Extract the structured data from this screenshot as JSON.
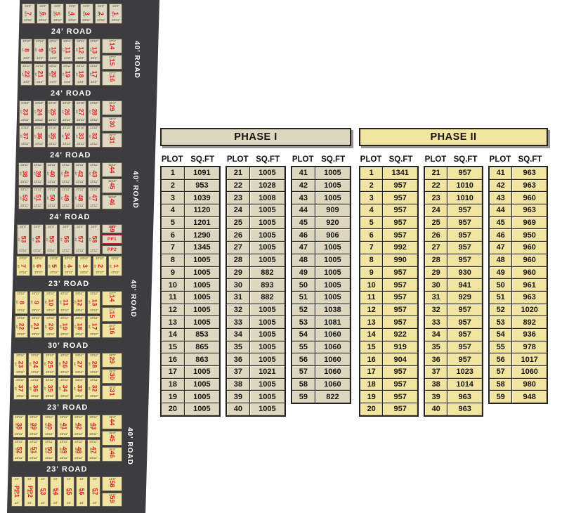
{
  "map": {
    "side_road_label": "40' ROAD",
    "colors": {
      "background": "#3d3c3e",
      "phase1_plot": "#ded8c2",
      "phase2_plot": "#f1e3a0",
      "plot_number": "#e32227",
      "road_text": "#ffffff"
    },
    "bands": [
      {
        "type": "plots",
        "phase": 1,
        "rows": [
          [
            "7",
            "6",
            "5",
            "4",
            "3",
            "2",
            "1"
          ]
        ],
        "right": [],
        "dim_top": "24'2\"",
        "dim_bottom": "23'11\"",
        "dim_side": "36'5\""
      },
      {
        "type": "road",
        "label": "24' ROAD"
      },
      {
        "type": "plots",
        "phase": 1,
        "rows": [
          [
            "8",
            "9",
            "10",
            "11",
            "12",
            "13"
          ],
          [
            "22",
            "21",
            "20",
            "19",
            "18",
            "17"
          ]
        ],
        "right": [
          "14",
          "15",
          "16"
        ],
        "dim_top": "23'11\"",
        "dim_bottom": "24'2\"",
        "dim_side": "42'",
        "dim_right": "27'1\""
      },
      {
        "type": "road",
        "label": "24' ROAD"
      },
      {
        "type": "plots",
        "phase": 1,
        "rows": [
          [
            "23",
            "24",
            "25",
            "26",
            "27",
            "28"
          ],
          [
            "37",
            "36",
            "35",
            "34",
            "33",
            "32"
          ]
        ],
        "right": [
          "29",
          "30",
          "31"
        ],
        "dim_top": "23'10\"",
        "dim_bottom": "23'11\"",
        "dim_side": "42'",
        "dim_right": "31'1\""
      },
      {
        "type": "road",
        "label": "24' ROAD"
      },
      {
        "type": "plots",
        "phase": 1,
        "rows": [
          [
            "38",
            "39",
            "40",
            "41",
            "42",
            "43"
          ],
          [
            "52",
            "51",
            "50",
            "49",
            "48",
            "47"
          ]
        ],
        "right": [
          "44",
          "45",
          "46"
        ],
        "dim_top": "23'11\"",
        "dim_bottom": "23'11\"",
        "dim_side": "42'",
        "dim_right": "32'10\""
      },
      {
        "type": "road",
        "label": "24' ROAD"
      },
      {
        "type": "plots",
        "phase": 1,
        "rows": [
          [
            "53",
            "54",
            "55",
            "56",
            "57",
            "58"
          ]
        ],
        "right": [
          "59",
          "PP1",
          "PP2"
        ],
        "dim_top": "24'3\"",
        "dim_bottom": "23'11\"",
        "dim_side": "44'",
        "dim_right": "33'10\""
      },
      {
        "type": "plots",
        "phase": 2,
        "rows": [
          [
            "7",
            "6",
            "5",
            "4",
            "3",
            "2",
            "1"
          ]
        ],
        "right": [],
        "dim_top": "23'11\"",
        "dim_bottom": "23'11\"",
        "dim_side": "40'"
      },
      {
        "type": "road",
        "label": "23' ROAD"
      },
      {
        "type": "plots",
        "phase": 2,
        "rows": [
          [
            "8",
            "9",
            "10",
            "11",
            "12",
            "13"
          ],
          [
            "22",
            "21",
            "20",
            "19",
            "18",
            "17"
          ]
        ],
        "right": [
          "14",
          "15",
          "16"
        ],
        "dim_top": "23'11\"",
        "dim_bottom": "23'11\"",
        "dim_side": "40'",
        "dim_right": "34'7\""
      },
      {
        "type": "road",
        "label": "30' ROAD"
      },
      {
        "type": "plots",
        "phase": 2,
        "rows": [
          [
            "23",
            "24",
            "25",
            "26",
            "27",
            "28"
          ],
          [
            "37",
            "36",
            "35",
            "34",
            "33",
            "32"
          ]
        ],
        "right": [
          "29",
          "30",
          "31"
        ],
        "dim_top": "23'11\"",
        "dim_bottom": "23'11\"",
        "dim_side": "40'",
        "dim_right": "35'3\""
      },
      {
        "type": "road",
        "label": "23' ROAD"
      },
      {
        "type": "plots",
        "phase": 2,
        "rows": [
          [
            "38",
            "39",
            "40",
            "41",
            "42",
            "43"
          ],
          [
            "52",
            "51",
            "50",
            "49",
            "48",
            "47"
          ]
        ],
        "right": [
          "44",
          "45",
          "46"
        ],
        "dim_top": "23'11\"",
        "dim_bottom": "23'11\"",
        "dim_side": "40'3\"",
        "dim_right": "36'4\""
      },
      {
        "type": "road",
        "label": "23' ROAD"
      },
      {
        "type": "plots",
        "phase": 2,
        "rows": [
          [
            "PP1",
            "PP2",
            "53",
            "54",
            "55",
            "56",
            "57"
          ]
        ],
        "right": [
          "58",
          "59"
        ],
        "dim_top": "24'",
        "dim_bottom": "24'",
        "dim_side": "36'6\"",
        "dim_right": "41'6\""
      }
    ]
  },
  "phase1": {
    "title": "PHASE I",
    "col_plot": "PLOT",
    "col_sqft": "SQ.FT",
    "groups": [
      [
        [
          1,
          1091
        ],
        [
          2,
          953
        ],
        [
          3,
          1039
        ],
        [
          4,
          1120
        ],
        [
          5,
          1201
        ],
        [
          6,
          1290
        ],
        [
          7,
          1345
        ],
        [
          8,
          1005
        ],
        [
          9,
          1005
        ],
        [
          10,
          1005
        ],
        [
          11,
          1005
        ],
        [
          12,
          1005
        ],
        [
          13,
          1005
        ],
        [
          14,
          853
        ],
        [
          15,
          865
        ],
        [
          16,
          863
        ],
        [
          17,
          1005
        ],
        [
          18,
          1005
        ],
        [
          19,
          1005
        ],
        [
          20,
          1005
        ]
      ],
      [
        [
          21,
          1005
        ],
        [
          22,
          1028
        ],
        [
          23,
          1008
        ],
        [
          24,
          1005
        ],
        [
          25,
          1005
        ],
        [
          26,
          1005
        ],
        [
          27,
          1005
        ],
        [
          28,
          1005
        ],
        [
          29,
          882
        ],
        [
          30,
          893
        ],
        [
          31,
          882
        ],
        [
          32,
          1005
        ],
        [
          33,
          1005
        ],
        [
          34,
          1005
        ],
        [
          35,
          1005
        ],
        [
          36,
          1005
        ],
        [
          37,
          1021
        ],
        [
          38,
          1005
        ],
        [
          39,
          1005
        ],
        [
          40,
          1005
        ]
      ],
      [
        [
          41,
          1005
        ],
        [
          42,
          1005
        ],
        [
          43,
          1005
        ],
        [
          44,
          909
        ],
        [
          45,
          920
        ],
        [
          46,
          906
        ],
        [
          47,
          1005
        ],
        [
          48,
          1005
        ],
        [
          49,
          1005
        ],
        [
          50,
          1005
        ],
        [
          51,
          1005
        ],
        [
          52,
          1038
        ],
        [
          53,
          1081
        ],
        [
          54,
          1060
        ],
        [
          55,
          1060
        ],
        [
          56,
          1060
        ],
        [
          57,
          1060
        ],
        [
          58,
          1060
        ],
        [
          59,
          822
        ]
      ]
    ]
  },
  "phase2": {
    "title": "PHASE II",
    "col_plot": "PLOT",
    "col_sqft": "SQ.FT",
    "groups": [
      [
        [
          1,
          1341
        ],
        [
          2,
          957
        ],
        [
          3,
          957
        ],
        [
          4,
          957
        ],
        [
          5,
          957
        ],
        [
          6,
          957
        ],
        [
          7,
          992
        ],
        [
          8,
          990
        ],
        [
          9,
          957
        ],
        [
          10,
          957
        ],
        [
          11,
          957
        ],
        [
          12,
          957
        ],
        [
          13,
          957
        ],
        [
          14,
          922
        ],
        [
          15,
          919
        ],
        [
          16,
          904
        ],
        [
          17,
          957
        ],
        [
          18,
          957
        ],
        [
          19,
          957
        ],
        [
          20,
          957
        ]
      ],
      [
        [
          21,
          957
        ],
        [
          22,
          1010
        ],
        [
          23,
          1010
        ],
        [
          24,
          957
        ],
        [
          25,
          957
        ],
        [
          26,
          957
        ],
        [
          27,
          957
        ],
        [
          28,
          957
        ],
        [
          29,
          930
        ],
        [
          30,
          941
        ],
        [
          31,
          929
        ],
        [
          32,
          957
        ],
        [
          33,
          957
        ],
        [
          34,
          957
        ],
        [
          35,
          957
        ],
        [
          36,
          957
        ],
        [
          37,
          1023
        ],
        [
          38,
          1014
        ],
        [
          39,
          963
        ],
        [
          40,
          963
        ]
      ],
      [
        [
          41,
          963
        ],
        [
          42,
          963
        ],
        [
          43,
          960
        ],
        [
          44,
          963
        ],
        [
          45,
          969
        ],
        [
          46,
          950
        ],
        [
          47,
          960
        ],
        [
          48,
          960
        ],
        [
          49,
          960
        ],
        [
          50,
          961
        ],
        [
          51,
          963
        ],
        [
          52,
          1020
        ],
        [
          53,
          892
        ],
        [
          54,
          936
        ],
        [
          55,
          978
        ],
        [
          56,
          1017
        ],
        [
          57,
          1060
        ],
        [
          58,
          980
        ],
        [
          59,
          948
        ]
      ]
    ]
  }
}
